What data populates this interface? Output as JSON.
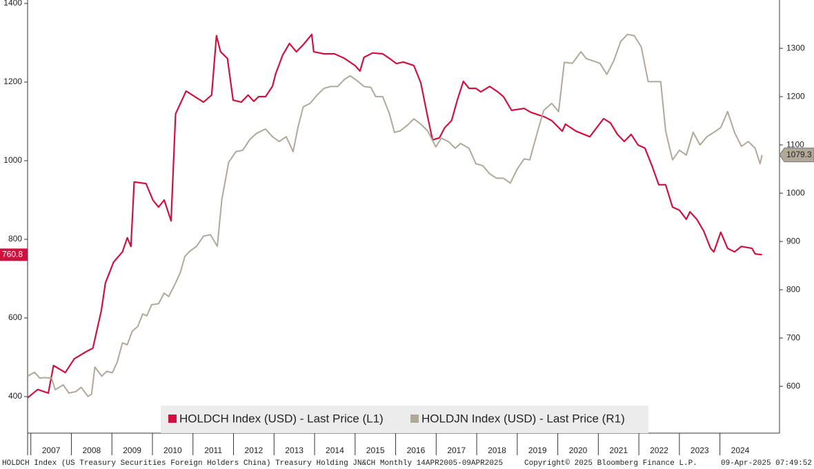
{
  "chart_data": {
    "type": "line",
    "xlim": [
      2006.92,
      2025.47
    ],
    "xticks": [
      2007,
      2008,
      2009,
      2010,
      2011,
      2012,
      2013,
      2014,
      2015,
      2016,
      2017,
      2018,
      2019,
      2020,
      2021,
      2022,
      2023,
      2024
    ],
    "ylim": [
      307,
      1400
    ],
    "yticks": [
      400,
      600,
      800,
      1000,
      1200,
      1400
    ],
    "y2lim": [
      503,
      1393
    ],
    "y2ticks": [
      600,
      700,
      800,
      900,
      1000,
      1100,
      1200,
      1300
    ],
    "series": [
      {
        "name": "HOLDCH Index (USD) - Last Price (L1)",
        "color": "#d0103f",
        "axis": "y",
        "x": [
          2006.92,
          2007.17,
          2007.43,
          2007.56,
          2007.85,
          2008.07,
          2008.36,
          2008.53,
          2008.74,
          2008.84,
          2009.04,
          2009.26,
          2009.38,
          2009.47,
          2009.55,
          2009.84,
          2010.01,
          2010.15,
          2010.29,
          2010.46,
          2010.57,
          2010.83,
          2011.09,
          2011.26,
          2011.46,
          2011.58,
          2011.68,
          2011.85,
          2011.99,
          2012.19,
          2012.36,
          2012.5,
          2012.62,
          2012.79,
          2012.96,
          2013.04,
          2013.21,
          2013.38,
          2013.55,
          2013.72,
          2013.93,
          2013.98,
          2014.23,
          2014.49,
          2014.74,
          2015.0,
          2015.12,
          2015.22,
          2015.43,
          2015.68,
          2015.85,
          2016.02,
          2016.19,
          2016.45,
          2016.62,
          2016.79,
          2016.91,
          2017.08,
          2017.21,
          2017.38,
          2017.52,
          2017.67,
          2017.81,
          2017.98,
          2018.1,
          2018.32,
          2018.52,
          2018.66,
          2018.86,
          2019.17,
          2019.34,
          2019.68,
          2019.85,
          2020.11,
          2020.19,
          2020.45,
          2020.79,
          2021.13,
          2021.3,
          2021.47,
          2021.64,
          2021.81,
          2021.98,
          2022.15,
          2022.32,
          2022.49,
          2022.66,
          2022.83,
          2023.0,
          2023.17,
          2023.26,
          2023.43,
          2023.6,
          2023.77,
          2023.85,
          2024.02,
          2024.19,
          2024.36,
          2024.53,
          2024.79,
          2024.87,
          2025.04
        ],
        "values": [
          397,
          418,
          409,
          479,
          461,
          496,
          514,
          523,
          619,
          689,
          742,
          768,
          804,
          782,
          946,
          942,
          900,
          882,
          900,
          847,
          1119,
          1177,
          1160,
          1149,
          1167,
          1318,
          1277,
          1260,
          1154,
          1149,
          1167,
          1151,
          1163,
          1163,
          1189,
          1221,
          1268,
          1298,
          1277,
          1295,
          1321,
          1277,
          1272,
          1272,
          1260,
          1242,
          1228,
          1263,
          1274,
          1272,
          1260,
          1247,
          1251,
          1242,
          1198,
          1111,
          1053,
          1058,
          1084,
          1102,
          1154,
          1202,
          1184,
          1184,
          1175,
          1189,
          1175,
          1163,
          1128,
          1133,
          1123,
          1111,
          1102,
          1075,
          1093,
          1075,
          1061,
          1107,
          1096,
          1067,
          1049,
          1067,
          1040,
          1032,
          988,
          939,
          939,
          882,
          874,
          851,
          870,
          851,
          821,
          777,
          768,
          818,
          777,
          768,
          782,
          777,
          763,
          760.8
        ]
      },
      {
        "name": "HOLDJN Index (USD) - Last Price (R1)",
        "color": "#b0a898",
        "axis": "y2",
        "x": [
          2006.92,
          2007.09,
          2007.22,
          2007.34,
          2007.51,
          2007.6,
          2007.8,
          2007.94,
          2008.11,
          2008.24,
          2008.41,
          2008.5,
          2008.58,
          2008.75,
          2008.87,
          2009.01,
          2009.13,
          2009.26,
          2009.38,
          2009.5,
          2009.64,
          2009.76,
          2009.86,
          2009.98,
          2010.15,
          2010.29,
          2010.4,
          2010.57,
          2010.69,
          2010.8,
          2010.91,
          2011.09,
          2011.26,
          2011.43,
          2011.6,
          2011.71,
          2011.88,
          2012.06,
          2012.23,
          2012.4,
          2012.57,
          2012.79,
          2012.96,
          2013.13,
          2013.3,
          2013.47,
          2013.59,
          2013.72,
          2013.89,
          2014.06,
          2014.23,
          2014.4,
          2014.57,
          2014.74,
          2014.88,
          2015.05,
          2015.22,
          2015.39,
          2015.51,
          2015.68,
          2015.85,
          2015.97,
          2016.11,
          2016.28,
          2016.45,
          2016.62,
          2016.79,
          2016.99,
          2017.13,
          2017.3,
          2017.47,
          2017.6,
          2017.81,
          2017.98,
          2018.15,
          2018.32,
          2018.49,
          2018.66,
          2018.83,
          2019.0,
          2019.17,
          2019.31,
          2019.48,
          2019.65,
          2019.85,
          2020.02,
          2020.16,
          2020.36,
          2020.57,
          2020.7,
          2020.87,
          2021.04,
          2021.21,
          2021.38,
          2021.55,
          2021.72,
          2021.89,
          2022.06,
          2022.23,
          2022.4,
          2022.54,
          2022.66,
          2022.83,
          2023.0,
          2023.17,
          2023.34,
          2023.51,
          2023.68,
          2023.85,
          2024.02,
          2024.19,
          2024.36,
          2024.53,
          2024.7,
          2024.87,
          2024.99,
          2025.04
        ],
        "values": [
          621,
          629,
          617,
          618,
          617,
          593,
          603,
          586,
          589,
          598,
          579,
          584,
          640,
          621,
          631,
          628,
          650,
          690,
          686,
          714,
          724,
          750,
          746,
          769,
          771,
          793,
          786,
          814,
          836,
          869,
          879,
          890,
          911,
          914,
          890,
          986,
          1064,
          1086,
          1089,
          1111,
          1124,
          1133,
          1117,
          1107,
          1117,
          1086,
          1136,
          1179,
          1186,
          1203,
          1217,
          1221,
          1221,
          1236,
          1243,
          1233,
          1221,
          1219,
          1200,
          1200,
          1164,
          1126,
          1129,
          1140,
          1154,
          1143,
          1129,
          1096,
          1114,
          1107,
          1093,
          1103,
          1093,
          1061,
          1057,
          1040,
          1031,
          1031,
          1021,
          1050,
          1071,
          1069,
          1121,
          1171,
          1186,
          1169,
          1271,
          1269,
          1293,
          1279,
          1274,
          1269,
          1246,
          1274,
          1314,
          1329,
          1326,
          1303,
          1231,
          1231,
          1231,
          1129,
          1069,
          1089,
          1079,
          1126,
          1100,
          1117,
          1126,
          1136,
          1169,
          1126,
          1097,
          1107,
          1093,
          1061,
          1079.3
        ]
      }
    ],
    "footer": {
      "description": "HOLDCH Index (US Treasury Securities Foreign Holders China) Treasury Holding JN&CH  Monthly 14APR2005-09APR2025",
      "copyright": "Copyright© 2025 Bloomberg Finance L.P.",
      "timestamp": "09-Apr-2025 07:49:52"
    }
  }
}
